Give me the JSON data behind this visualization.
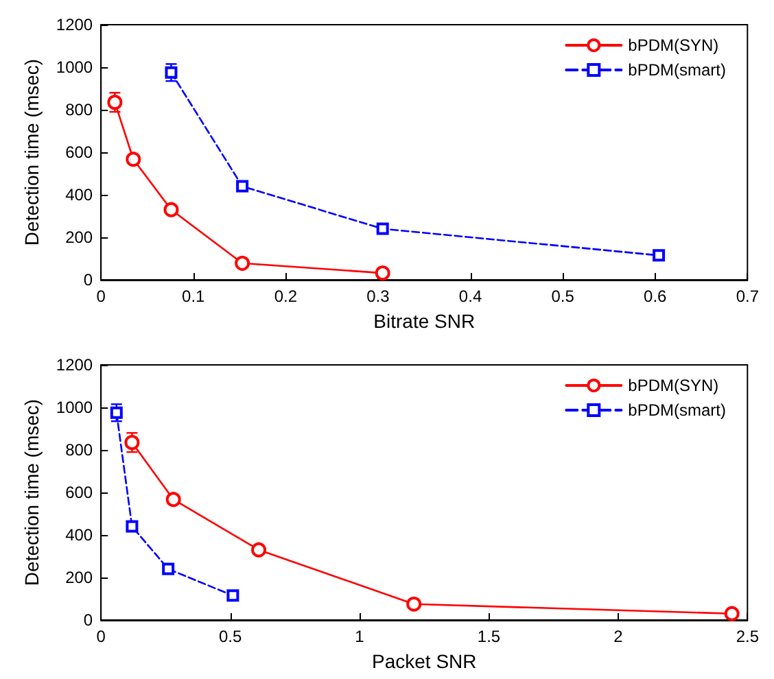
{
  "chart_data": [
    {
      "type": "line",
      "xlabel": "Bitrate SNR",
      "ylabel": "Detection time (msec)",
      "xlim": [
        0,
        0.7
      ],
      "xticks": [
        0,
        0.1,
        0.2,
        0.3,
        0.4,
        0.5,
        0.6,
        0.7
      ],
      "ylim": [
        0,
        1200
      ],
      "yticks": [
        0,
        200,
        400,
        600,
        800,
        1000,
        1200
      ],
      "grid": false,
      "legend": "top right",
      "series": [
        {
          "name": "bPDM(SYN)",
          "color": "#ff0000",
          "marker": "circle",
          "line_style": "solid",
          "x": [
            0.015,
            0.035,
            0.076,
            0.153,
            0.305
          ],
          "values": [
            835,
            567,
            330,
            78,
            32
          ],
          "errors": [
            45,
            15,
            15,
            10,
            10
          ]
        },
        {
          "name": "bPDM(smart)",
          "color": "#0000ff",
          "marker": "square",
          "line_style": "dashed",
          "x": [
            0.076,
            0.153,
            0.305,
            0.604
          ],
          "values": [
            975,
            440,
            240,
            115
          ],
          "errors": [
            40,
            15,
            15,
            15
          ]
        }
      ]
    },
    {
      "type": "line",
      "xlabel": "Packet SNR",
      "ylabel": "Detection time (msec)",
      "xlim": [
        0,
        2.5
      ],
      "xticks": [
        0,
        0.5,
        1,
        1.5,
        2,
        2.5
      ],
      "ylim": [
        0,
        1200
      ],
      "yticks": [
        0,
        200,
        400,
        600,
        800,
        1000,
        1200
      ],
      "grid": false,
      "legend": "top right",
      "series": [
        {
          "name": "bPDM(SYN)",
          "color": "#ff0000",
          "marker": "circle",
          "line_style": "solid",
          "x": [
            0.12,
            0.28,
            0.61,
            1.21,
            2.44
          ],
          "values": [
            835,
            567,
            330,
            75,
            30
          ],
          "errors": [
            45,
            20,
            15,
            10,
            10
          ]
        },
        {
          "name": "bPDM(smart)",
          "color": "#0000ff",
          "marker": "square",
          "line_style": "dashed",
          "x": [
            0.06,
            0.12,
            0.26,
            0.51
          ],
          "values": [
            975,
            440,
            240,
            115
          ],
          "errors": [
            40,
            15,
            15,
            15
          ]
        }
      ]
    }
  ]
}
